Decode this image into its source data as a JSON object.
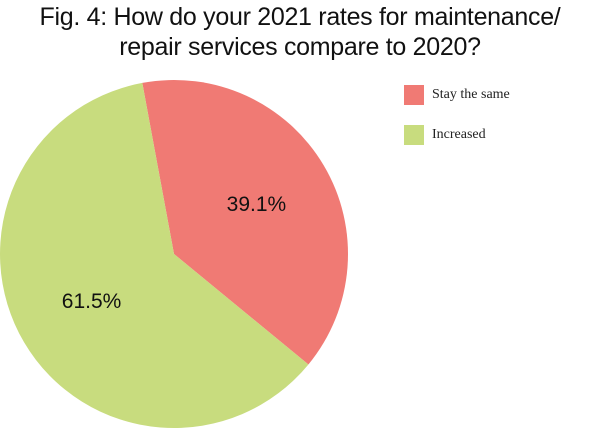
{
  "title_lines": [
    "Fig. 4: How do your 2021 rates for maintenance/",
    "repair services compare to 2020?"
  ],
  "chart_data": {
    "type": "pie",
    "title": "Fig. 4: How do your 2021 rates for maintenance/ repair services compare to 2020?",
    "categories": [
      "Stay the same",
      "Increased"
    ],
    "values": [
      39.1,
      61.5
    ],
    "labels": [
      "39.1%",
      "61.5%"
    ],
    "colors": [
      "#f07a74",
      "#c8dc7e"
    ],
    "legend_position": "top-right"
  }
}
